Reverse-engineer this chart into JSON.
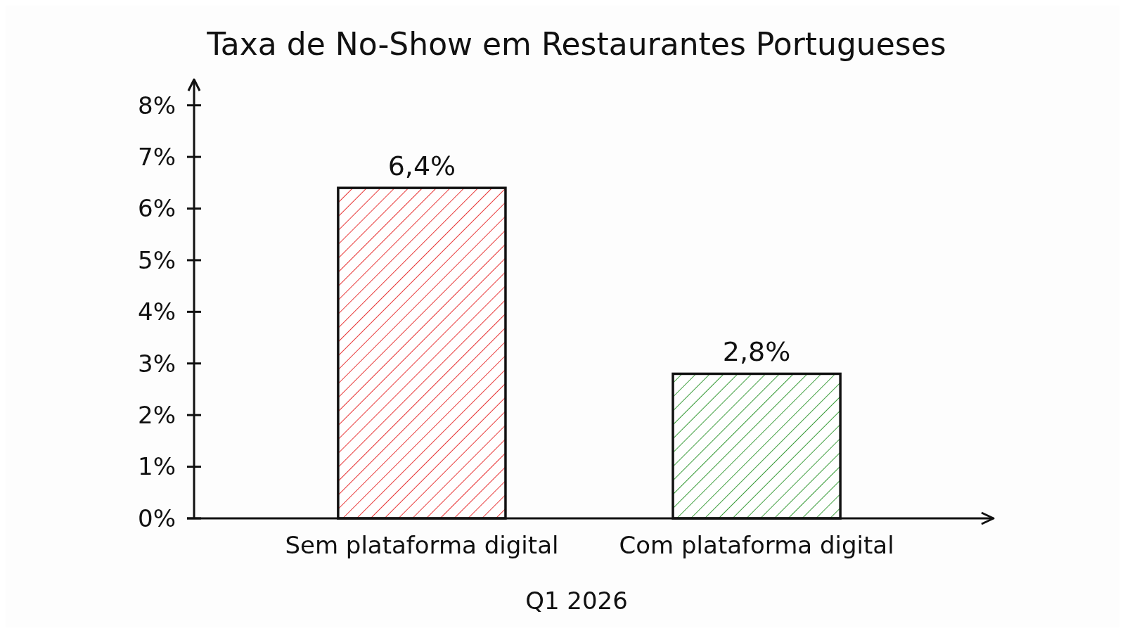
{
  "chart_data": {
    "type": "bar",
    "title": "Taxa de No-Show em Restaurantes Portugueses",
    "categories": [
      "Sem plataforma digital",
      "Com plataforma digital"
    ],
    "values": [
      6.4,
      2.8
    ],
    "colors": [
      "#e8393a",
      "#3e9e3e"
    ],
    "value_labels": [
      "6,4%",
      "2,8%"
    ],
    "ylim": [
      0,
      8.5
    ],
    "yticks": [
      {
        "value": 0,
        "label": "0%"
      },
      {
        "value": 1,
        "label": "1%"
      },
      {
        "value": 2,
        "label": "2%"
      },
      {
        "value": 3,
        "label": "3%"
      },
      {
        "value": 4,
        "label": "4%"
      },
      {
        "value": 5,
        "label": "5%"
      },
      {
        "value": 6,
        "label": "6%"
      },
      {
        "value": 7,
        "label": "7%"
      },
      {
        "value": 8,
        "label": "8%"
      }
    ],
    "grid": false,
    "annotations": [
      "Q1 2026"
    ]
  }
}
